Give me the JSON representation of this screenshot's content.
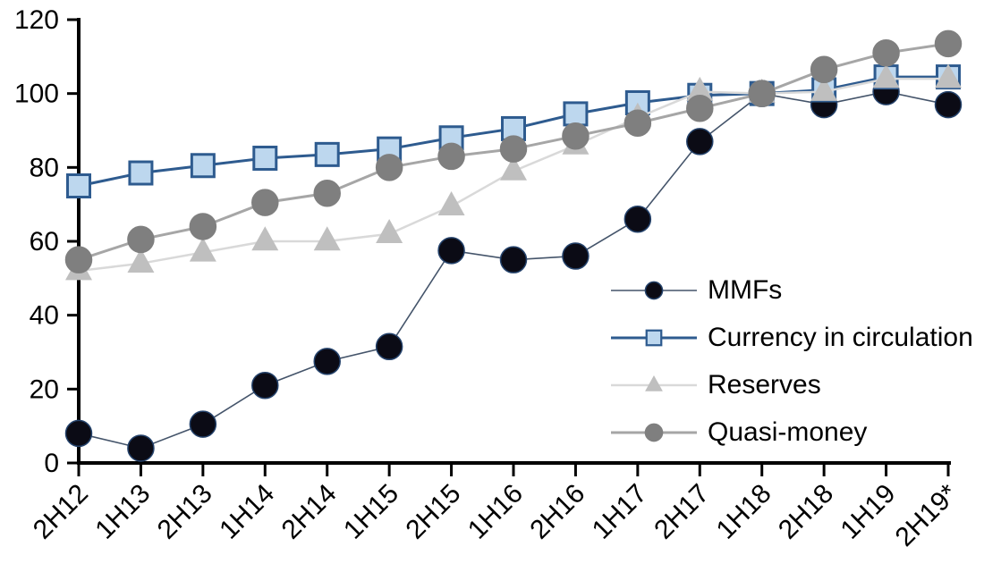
{
  "chart_data": {
    "type": "line",
    "categories": [
      "2H12",
      "1H13",
      "2H13",
      "1H14",
      "2H14",
      "1H15",
      "2H15",
      "1H16",
      "2H16",
      "1H17",
      "2H17",
      "1H18",
      "2H18",
      "1H19",
      "2H19*"
    ],
    "series": [
      {
        "name": "MMFs",
        "marker": "circle",
        "marker_fill": "#0b0b15",
        "marker_stroke": "#24426b",
        "line_color": "#44546a",
        "line_width": 1.6,
        "marker_size": 29,
        "values": [
          8,
          4,
          10.5,
          21,
          27.5,
          31.5,
          57.5,
          55,
          56,
          66,
          87,
          100,
          97,
          100.5,
          97
        ]
      },
      {
        "name": "Currency in circulation",
        "marker": "square",
        "marker_fill": "#bdd7ee",
        "marker_stroke": "#2e5b8f",
        "line_color": "#2e5b8f",
        "line_width": 3,
        "marker_size": 25,
        "values": [
          75,
          78.5,
          80.5,
          82.5,
          83.5,
          85,
          88,
          90.5,
          94.5,
          97.5,
          99.5,
          100,
          101,
          104.5,
          104.5
        ]
      },
      {
        "name": "Reserves",
        "marker": "triangle",
        "marker_fill": "#bfbfbf",
        "marker_stroke": "#bfbfbf",
        "line_color": "#d9d9d9",
        "line_width": 2.5,
        "marker_size": 30,
        "values": [
          52,
          54,
          57,
          60,
          60,
          62,
          69.5,
          79,
          86,
          93.5,
          100.5,
          100,
          100.5,
          104,
          104
        ]
      },
      {
        "name": "Quasi-money",
        "marker": "circle",
        "marker_fill": "#7f7f7f",
        "marker_stroke": "#7f7f7f",
        "line_color": "#a6a6a6",
        "line_width": 3,
        "marker_size": 29,
        "values": [
          55,
          60.5,
          64,
          70.5,
          73,
          80,
          83,
          85,
          88.5,
          92,
          96,
          100,
          106.5,
          111,
          113.5
        ]
      }
    ],
    "ylim": [
      0,
      120
    ],
    "yticks": [
      0,
      20,
      40,
      60,
      80,
      100,
      120
    ],
    "grid": false,
    "legend_position": "middle-right",
    "axis_color": "#000000"
  }
}
